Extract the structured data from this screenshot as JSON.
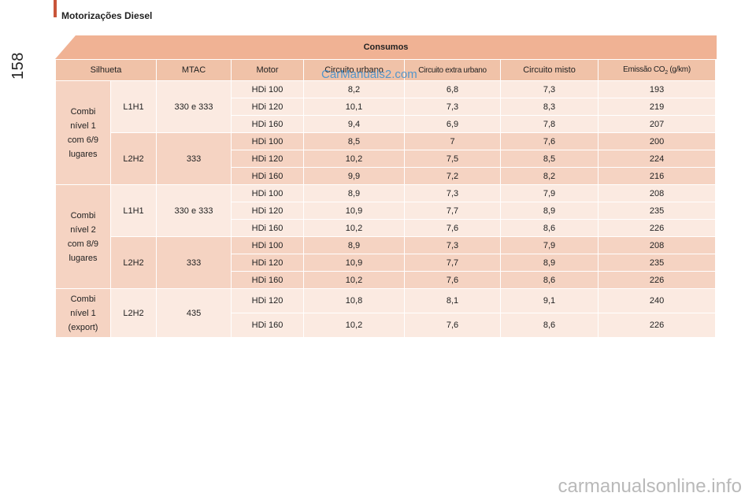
{
  "header": {
    "section_title": "Motorizações Diesel",
    "page_number": "158"
  },
  "table": {
    "title": "Consumos",
    "columns": {
      "silhueta": "Silhueta",
      "mtac": "MTAC",
      "motor": "Motor",
      "urbano": "Circuito urbano",
      "extra_urbano": "Circuito extra urbano",
      "misto": "Circuito misto",
      "emissao_prefix": "Emissão CO",
      "emissao_sub": "2",
      "emissao_suffix": " (g/km)"
    },
    "groups": [
      {
        "silhueta": [
          "Combi",
          "nível 1",
          "com 6/9",
          "lugares"
        ]
      },
      {
        "silhueta": [
          "Combi",
          "nível 2",
          "com 8/9",
          "lugares"
        ]
      },
      {
        "silhueta": [
          "Combi",
          "nível 1",
          "(export)"
        ]
      }
    ],
    "subgroups": [
      {
        "version": "L1H1",
        "mtac": "330 e 333"
      },
      {
        "version": "L2H2",
        "mtac": "333"
      },
      {
        "version": "L1H1",
        "mtac": "330 e 333"
      },
      {
        "version": "L2H2",
        "mtac": "333"
      },
      {
        "version": "L2H2",
        "mtac": "435"
      }
    ],
    "rows": [
      {
        "motor": "HDi 100",
        "urbano": "8,2",
        "extra": "6,8",
        "misto": "7,3",
        "co2": "193"
      },
      {
        "motor": "HDi 120",
        "urbano": "10,1",
        "extra": "7,3",
        "misto": "8,3",
        "co2": "219"
      },
      {
        "motor": "HDi 160",
        "urbano": "9,4",
        "extra": "6,9",
        "misto": "7,8",
        "co2": "207"
      },
      {
        "motor": "HDi 100",
        "urbano": "8,5",
        "extra": "7",
        "misto": "7,6",
        "co2": "200"
      },
      {
        "motor": "HDi 120",
        "urbano": "10,2",
        "extra": "7,5",
        "misto": "8,5",
        "co2": "224"
      },
      {
        "motor": "HDi 160",
        "urbano": "9,9",
        "extra": "7,2",
        "misto": "8,2",
        "co2": "216"
      },
      {
        "motor": "HDi 100",
        "urbano": "8,9",
        "extra": "7,3",
        "misto": "7,9",
        "co2": "208"
      },
      {
        "motor": "HDi 120",
        "urbano": "10,9",
        "extra": "7,7",
        "misto": "8,9",
        "co2": "235"
      },
      {
        "motor": "HDi 160",
        "urbano": "10,2",
        "extra": "7,6",
        "misto": "8,6",
        "co2": "226"
      },
      {
        "motor": "HDi 100",
        "urbano": "8,9",
        "extra": "7,3",
        "misto": "7,9",
        "co2": "208"
      },
      {
        "motor": "HDi 120",
        "urbano": "10,9",
        "extra": "7,7",
        "misto": "8,9",
        "co2": "235"
      },
      {
        "motor": "HDi 160",
        "urbano": "10,2",
        "extra": "7,6",
        "misto": "8,6",
        "co2": "226"
      },
      {
        "motor": "HDi 120",
        "urbano": "10,8",
        "extra": "8,1",
        "misto": "9,1",
        "co2": "240"
      },
      {
        "motor": "HDi 160",
        "urbano": "10,2",
        "extra": "7,6",
        "misto": "8,6",
        "co2": "226"
      }
    ]
  },
  "watermarks": {
    "top": "CarManuals2.com",
    "bottom": "carmanualsonline.info"
  },
  "colors": {
    "accent": "#c8553a",
    "header_band": "#f0b294",
    "row_light": "#fbeae1",
    "row_dark": "#f5d3c2"
  }
}
